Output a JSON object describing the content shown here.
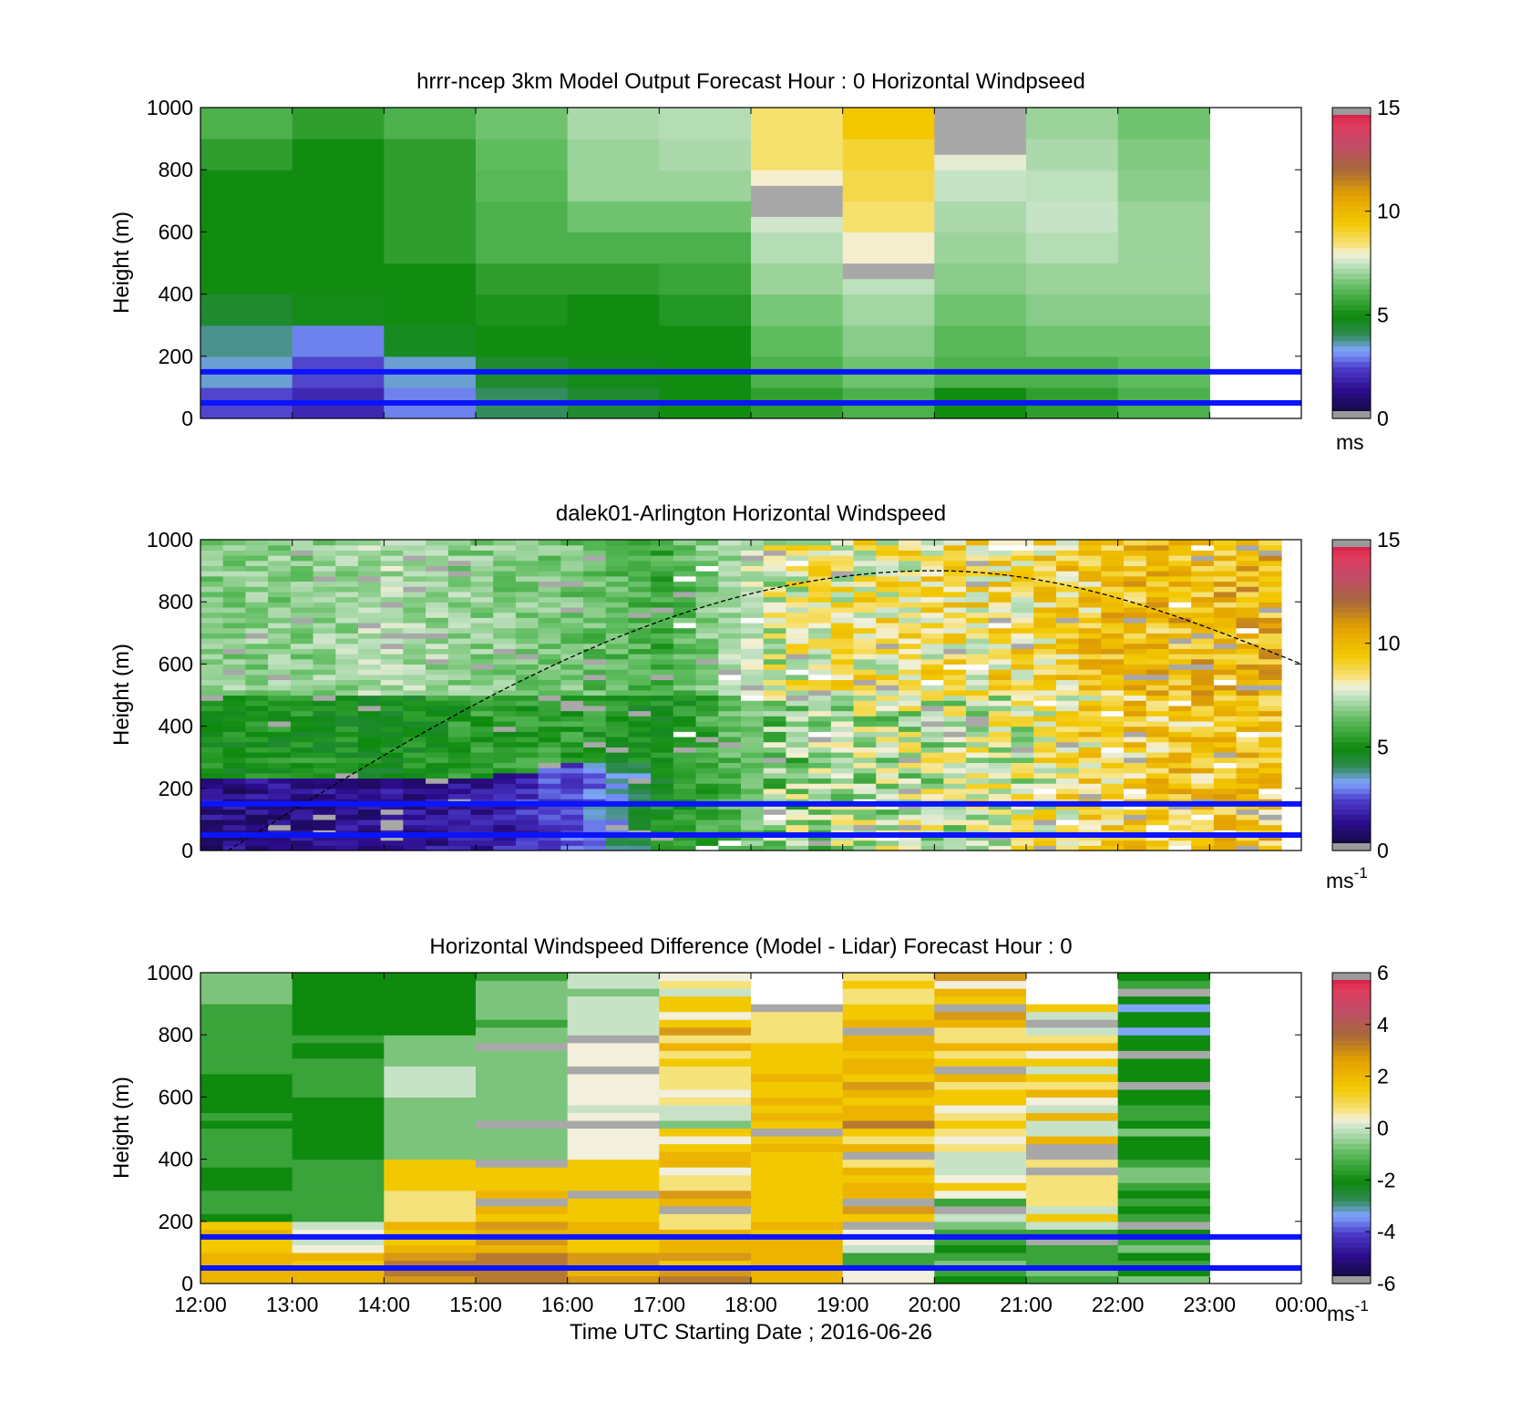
{
  "chart_data": [
    {
      "type": "heatmap",
      "title": "hrrr-ncep 3km Model Output   Forecast Hour : 0 Horizontal Windpseed",
      "ylabel": "Height (m)",
      "xlabel": "",
      "ylim": [
        0,
        1000
      ],
      "yticks": [
        "0",
        "200",
        "400",
        "600",
        "800",
        "1000"
      ],
      "xlim": [
        "12:00",
        "00:00"
      ],
      "colorbar": {
        "min": 0,
        "max": 15,
        "ticks": [
          "0",
          "5",
          "10",
          "15"
        ],
        "unit": "ms"
      },
      "reference_lines_m": [
        150,
        50
      ],
      "columns": [
        {
          "time": "12:00",
          "profile": [
            2.5,
            3.5,
            3.8,
            4.5,
            5,
            5,
            5,
            5,
            5.5,
            6
          ]
        },
        {
          "time": "13:00",
          "profile": [
            2.0,
            2.5,
            3.0,
            4.8,
            5,
            5,
            5,
            5,
            5,
            5.5
          ]
        },
        {
          "time": "14:00",
          "profile": [
            3.0,
            3.5,
            4.7,
            5,
            5,
            5.5,
            5.5,
            5.5,
            5.5,
            6
          ]
        },
        {
          "time": "15:00",
          "profile": [
            4.0,
            4.5,
            5,
            5.2,
            5.5,
            6,
            6,
            6.2,
            6.3,
            6.5
          ]
        },
        {
          "time": "16:00",
          "profile": [
            4.5,
            4.8,
            5,
            5,
            5.5,
            6,
            6.5,
            7,
            7,
            7.2
          ]
        },
        {
          "time": "17:00",
          "profile": [
            5,
            5,
            5,
            5.3,
            5.7,
            6,
            6.5,
            7,
            7.2,
            7.3
          ]
        },
        {
          "time": "18:00",
          "profile": [
            5.5,
            6,
            6.3,
            6.6,
            7,
            7.3,
            7.6,
            8,
            8.5,
            8.5
          ]
        },
        {
          "time": "19:00",
          "profile": [
            6,
            6.5,
            6.8,
            7.1,
            7.4,
            8,
            8.5,
            8.8,
            9,
            9.5
          ]
        },
        {
          "time": "20:00",
          "profile": [
            5,
            6,
            6.2,
            6.5,
            6.8,
            7,
            7.2,
            7.5,
            7.8,
            8
          ]
        },
        {
          "time": "21:00",
          "profile": [
            5.5,
            6,
            6.5,
            6.8,
            7,
            7.3,
            7.5,
            7.4,
            7.2,
            7
          ]
        },
        {
          "time": "22:00",
          "profile": [
            6,
            6.3,
            6.5,
            6.8,
            7,
            7,
            7,
            6.8,
            6.7,
            6.5
          ]
        }
      ]
    },
    {
      "type": "heatmap",
      "title": "dalek01-Arlington  Horizontal Windspeed",
      "ylabel": "Height (m)",
      "xlabel": "",
      "ylim": [
        0,
        1000
      ],
      "yticks": [
        "0",
        "200",
        "400",
        "600",
        "800",
        "1000"
      ],
      "xlim": [
        "12:00",
        "00:00"
      ],
      "colorbar": {
        "min": 0,
        "max": 15,
        "ticks": [
          "0",
          "5",
          "10",
          "15"
        ],
        "unit": "ms",
        "unit_exp": "-1"
      },
      "reference_lines_m": [
        150,
        50
      ],
      "boundary_layer_curve": {
        "start_hour": 12.3,
        "peak_hour": 20.0,
        "end_hour": 24.0,
        "peak_m": 900,
        "end_m": 600
      },
      "hourly_profiles": [
        {
          "hour": 12,
          "low": 1.3,
          "mid": 5,
          "top": 6.8
        },
        {
          "hour": 13,
          "low": 1.3,
          "mid": 5.2,
          "top": 6.8
        },
        {
          "hour": 14,
          "low": 1.4,
          "mid": 5,
          "top": 7.2
        },
        {
          "hour": 15,
          "low": 1.6,
          "mid": 5.5,
          "top": 6.8
        },
        {
          "hour": 16,
          "low": 2.5,
          "mid": 5.5,
          "top": 6.5
        },
        {
          "hour": 17,
          "low": 4.5,
          "mid": 5,
          "top": 5.8
        },
        {
          "hour": 18,
          "low": 5.5,
          "mid": 6.5,
          "top": 7.5
        },
        {
          "hour": 19,
          "low": 6.5,
          "mid": 7.2,
          "top": 8.3
        },
        {
          "hour": 20,
          "low": 7,
          "mid": 7.5,
          "top": 8.5
        },
        {
          "hour": 21,
          "low": 7.5,
          "mid": 7.8,
          "top": 8.8
        },
        {
          "hour": 22,
          "low": 8.5,
          "mid": 9.2,
          "top": 9.5
        },
        {
          "hour": 23,
          "low": 9,
          "mid": 9.5,
          "top": 10
        }
      ]
    },
    {
      "type": "heatmap",
      "title": "Horizontal Windspeed Difference (Model - Lidar) Forecast Hour : 0",
      "ylabel": "Height (m)",
      "xlabel": "Time UTC  Starting Date ; 2016-06-26",
      "ylim": [
        0,
        1000
      ],
      "yticks": [
        "0",
        "200",
        "400",
        "600",
        "800",
        "1000"
      ],
      "xticks": [
        "12:00",
        "13:00",
        "14:00",
        "15:00",
        "16:00",
        "17:00",
        "18:00",
        "19:00",
        "20:00",
        "21:00",
        "22:00",
        "23:00",
        "00:00"
      ],
      "colorbar": {
        "min": -6,
        "max": 6,
        "ticks": [
          "-6",
          "-4",
          "-2",
          "0",
          "2",
          "4",
          "6"
        ],
        "unit": "ms",
        "unit_exp": "-1"
      },
      "reference_lines_m": [
        150,
        50
      ],
      "columns": [
        {
          "time": "12:00",
          "profile": [
            2,
            1.5,
            -2.5,
            -2.5,
            -2.5,
            -2.5,
            -2.5,
            -2,
            -2,
            -1
          ]
        },
        {
          "time": "13:00",
          "profile": [
            1.5,
            0,
            -2,
            -2,
            -3,
            -3,
            -2,
            -2.5,
            -3,
            -3
          ]
        },
        {
          "time": "14:00",
          "profile": [
            2.5,
            1.5,
            0.5,
            1,
            -1,
            -1,
            -0.5,
            -1,
            -3,
            -3
          ]
        },
        {
          "time": "15:00",
          "profile": [
            2.5,
            2,
            1.5,
            1,
            -1,
            -1,
            -1,
            -1.5,
            -1.5,
            -1.5
          ]
        },
        {
          "time": "16:00",
          "profile": [
            2,
            1.5,
            1.2,
            1,
            0,
            0,
            0,
            0,
            -0.5,
            -0.5
          ]
        },
        {
          "time": "17:00",
          "profile": [
            2,
            1.5,
            1.3,
            1,
            1,
            0,
            0,
            1,
            1,
            0
          ]
        },
        {
          "time": "18:00",
          "profile": [
            1.5,
            1.3,
            1.2,
            1.2,
            1.3,
            1.3,
            1.3,
            1,
            0.5,
            null
          ]
        },
        {
          "time": "19:00",
          "profile": [
            -1,
            -0.5,
            1.5,
            1.5,
            1.5,
            1.8,
            1.5,
            1.5,
            1.3,
            1
          ]
        },
        {
          "time": "20:00",
          "profile": [
            -2,
            -2,
            -1,
            0.5,
            0.5,
            0.5,
            0.5,
            1,
            1,
            1
          ]
        },
        {
          "time": "21:00",
          "profile": [
            -1.5,
            -1,
            0.2,
            1,
            0.5,
            0.5,
            0.5,
            0.5,
            0,
            null
          ]
        },
        {
          "time": "22:00",
          "profile": [
            -2,
            -2.5,
            -2,
            -1.5,
            -2,
            -2.5,
            -3,
            -3,
            -3,
            -3
          ]
        }
      ]
    }
  ]
}
